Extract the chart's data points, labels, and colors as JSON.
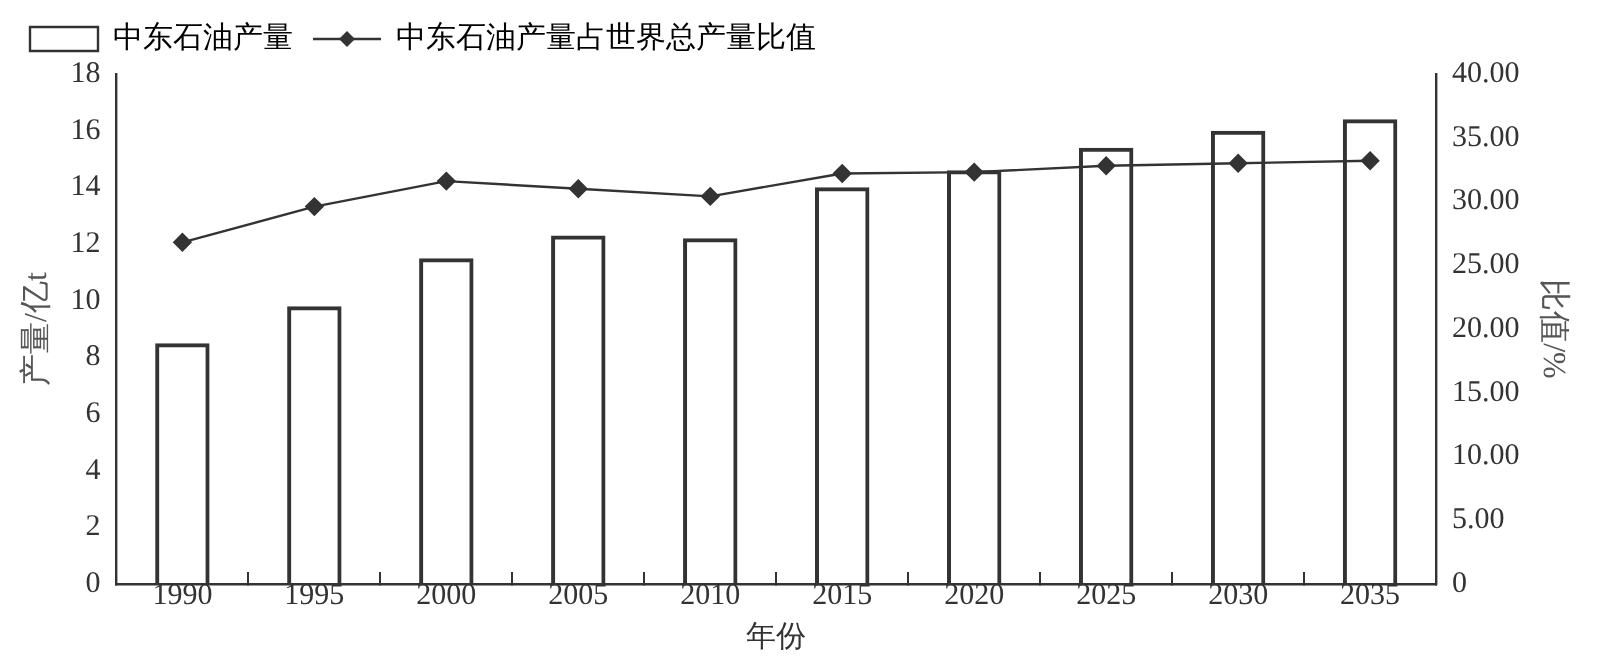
{
  "chart_data": {
    "type": "bar",
    "xlabel": "年份",
    "ylabel": "产量/亿t",
    "y2label": "比值/%",
    "categories": [
      "1990",
      "1995",
      "2000",
      "2005",
      "2010",
      "2015",
      "2020",
      "2025",
      "2030",
      "2035"
    ],
    "series": [
      {
        "name": "中东石油产量",
        "color": "#333333",
        "values": [
          8.5,
          9.8,
          11.5,
          12.3,
          12.2,
          14.0,
          14.6,
          15.4,
          16.0,
          16.4
        ]
      },
      {
        "name": "中东石油产量占世界总产量比值",
        "type": "line",
        "axis": "y2",
        "color": "#333333",
        "marker": "diamond",
        "values": [
          26.8,
          29.6,
          31.6,
          31.0,
          30.4,
          32.2,
          32.3,
          32.8,
          33.0,
          33.2
        ]
      }
    ],
    "ylim": [
      0,
      18
    ],
    "yticks": [
      0,
      2,
      4,
      6,
      8,
      10,
      12,
      14,
      16,
      18
    ],
    "y2lim": [
      0,
      40
    ],
    "y2ticks": [
      {
        "value": 0,
        "label": "0"
      },
      {
        "value": 5,
        "label": "5.00"
      },
      {
        "value": 10,
        "label": "10.00"
      },
      {
        "value": 15,
        "label": "15.00"
      },
      {
        "value": 20,
        "label": "20.00"
      },
      {
        "value": 25,
        "label": "25.00"
      },
      {
        "value": 30,
        "label": "30.00"
      },
      {
        "value": 35,
        "label": "35.00"
      },
      {
        "value": 40,
        "label": "40.00"
      }
    ],
    "grid": false,
    "legend": "top left"
  }
}
